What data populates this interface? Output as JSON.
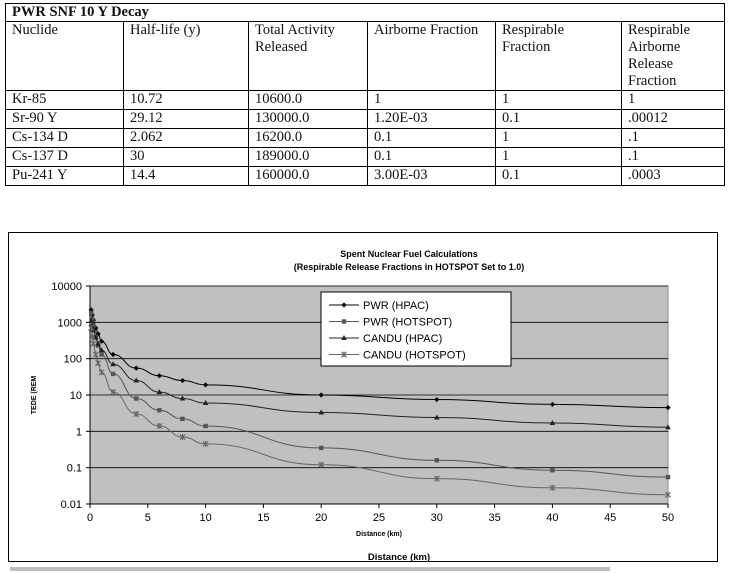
{
  "table": {
    "title": "PWR SNF 10 Y Decay",
    "headers": [
      "Nuclide",
      "Half-life (y)",
      "Total Activity Released",
      "Airborne Fraction",
      "Respirable Fraction",
      "Respirable Airborne Release Fraction"
    ],
    "rows": [
      [
        "Kr-85",
        "10.72",
        "10600.0",
        "1",
        "1",
        "1"
      ],
      [
        "Sr-90 Y",
        "29.12",
        "130000.0",
        "1.20E-03",
        "0.1",
        ".00012"
      ],
      [
        "Cs-134 D",
        "2.062",
        "16200.0",
        "0.1",
        "1",
        ".1"
      ],
      [
        "Cs-137 D",
        "30",
        "189000.0",
        "0.1",
        "1",
        ".1"
      ],
      [
        "Pu-241 Y",
        "14.4",
        "160000.0",
        "3.00E-03",
        "0.1",
        ".0003"
      ]
    ]
  },
  "chart_data": {
    "type": "line",
    "title": "Spent Nuclear Fuel Calculations",
    "subtitle": "(Respirable Release Fractions in HOTSPOT Set to 1.0)",
    "xlabel": "Distance (km)",
    "xlabel_outer": "Distance (km)",
    "ylabel": "TEDE (REM",
    "y_scale": "log",
    "xlim": [
      0,
      50
    ],
    "ylim": [
      0.01,
      10000
    ],
    "x_ticks": [
      "0",
      "5",
      "10",
      "15",
      "20",
      "25",
      "30",
      "35",
      "40",
      "45",
      "50"
    ],
    "y_ticks": [
      "10000",
      "1000",
      "100",
      "10",
      "1",
      "0.1",
      "0.01"
    ],
    "grid": true,
    "legend_position": "top-right",
    "plot_background": "#c0c0c0",
    "series": [
      {
        "name": "PWR (HPAC)",
        "marker": "diamond",
        "color": "#000000",
        "points": [
          [
            0.1,
            2200
          ],
          [
            0.2,
            1600
          ],
          [
            0.3,
            1150
          ],
          [
            0.5,
            700
          ],
          [
            0.7,
            480
          ],
          [
            1,
            300
          ],
          [
            2,
            130
          ],
          [
            4,
            55
          ],
          [
            6,
            34
          ],
          [
            8,
            25
          ],
          [
            10,
            19
          ],
          [
            20,
            10
          ],
          [
            30,
            7.5
          ],
          [
            40,
            5.5
          ],
          [
            50,
            4.5
          ]
        ]
      },
      {
        "name": "PWR (HOTSPOT)",
        "marker": "square",
        "color": "#555555",
        "points": [
          [
            0.1,
            1800
          ],
          [
            0.2,
            1200
          ],
          [
            0.3,
            800
          ],
          [
            0.5,
            400
          ],
          [
            0.7,
            230
          ],
          [
            1,
            130
          ],
          [
            2,
            38
          ],
          [
            4,
            8
          ],
          [
            6,
            3.8
          ],
          [
            8,
            2.2
          ],
          [
            10,
            1.4
          ],
          [
            20,
            0.35
          ],
          [
            30,
            0.16
          ],
          [
            40,
            0.085
          ],
          [
            50,
            0.055
          ]
        ]
      },
      {
        "name": "CANDU (HPAC)",
        "marker": "triangle",
        "color": "#222222",
        "points": [
          [
            0.1,
            1100
          ],
          [
            0.2,
            800
          ],
          [
            0.3,
            600
          ],
          [
            0.5,
            380
          ],
          [
            0.7,
            260
          ],
          [
            1,
            170
          ],
          [
            2,
            70
          ],
          [
            4,
            25
          ],
          [
            6,
            12
          ],
          [
            8,
            8
          ],
          [
            10,
            6
          ],
          [
            20,
            3.3
          ],
          [
            30,
            2.4
          ],
          [
            40,
            1.7
          ],
          [
            50,
            1.3
          ]
        ]
      },
      {
        "name": "CANDU (HOTSPOT)",
        "marker": "x",
        "color": "#666666",
        "points": [
          [
            0.1,
            700
          ],
          [
            0.2,
            400
          ],
          [
            0.3,
            260
          ],
          [
            0.5,
            130
          ],
          [
            0.7,
            75
          ],
          [
            1,
            42
          ],
          [
            2,
            12
          ],
          [
            4,
            3
          ],
          [
            6,
            1.4
          ],
          [
            8,
            0.7
          ],
          [
            10,
            0.45
          ],
          [
            20,
            0.12
          ],
          [
            30,
            0.05
          ],
          [
            40,
            0.028
          ],
          [
            50,
            0.018
          ]
        ]
      }
    ]
  }
}
